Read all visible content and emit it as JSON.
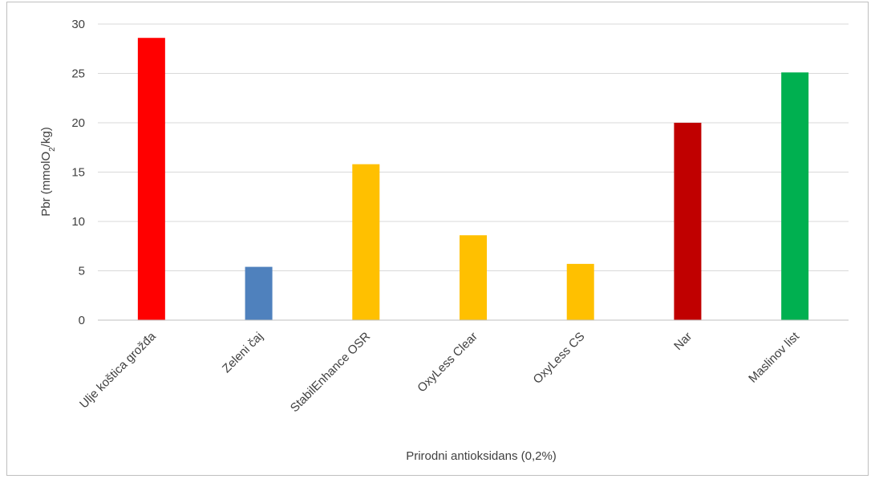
{
  "chart_data": {
    "type": "bar",
    "title": "",
    "xlabel": "Prirodni antioksidans (0,2%)",
    "ylabel_main": "Pbr (mmolO",
    "ylabel_sub": "2",
    "ylabel_end": "/kg)",
    "categories": [
      "Ulje koštica grožđa",
      "Zeleni čaj",
      "StabilEnhance OSR",
      "OxyLess Clear",
      "OxyLess CS",
      "Nar",
      "Maslinov list"
    ],
    "values": [
      28.6,
      5.4,
      15.8,
      8.6,
      5.7,
      20.0,
      25.1
    ],
    "colors": [
      "#ff0000",
      "#4f81bd",
      "#ffc000",
      "#ffc000",
      "#ffc000",
      "#c00000",
      "#00b050"
    ],
    "ylim": [
      0,
      30
    ],
    "yticks": [
      "0",
      "5",
      "10",
      "15",
      "20",
      "25",
      "30"
    ],
    "ytick_values": [
      0,
      5,
      10,
      15,
      20,
      25,
      30
    ],
    "grid": true,
    "legend": "none"
  }
}
